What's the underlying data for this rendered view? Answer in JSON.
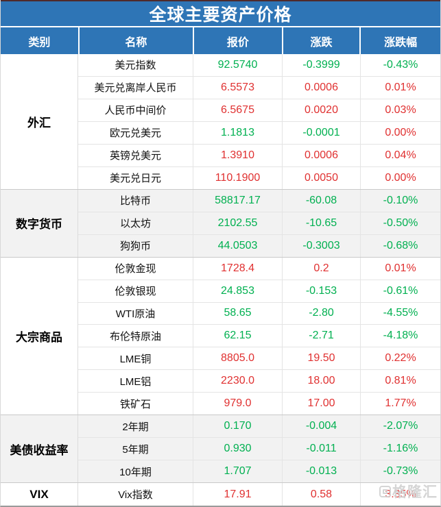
{
  "title": "全球主要资产价格",
  "watermark": {
    "text": "格隆汇"
  },
  "colors": {
    "up_red": "#e03030",
    "down_green": "#00b050",
    "header_blue": "#2e75b6",
    "shaded_bg": "#f2f2f2"
  },
  "chart_data": {
    "type": "table",
    "title": "全球主要资产价格",
    "columns": [
      "类别",
      "名称",
      "报价",
      "涨跌",
      "涨跌幅"
    ],
    "sections": [
      {
        "category": "外汇",
        "shaded": false,
        "rows": [
          {
            "name": "美元指数",
            "price": "92.5740",
            "change": "-0.3999",
            "pct": "-0.43%",
            "price_dir": "down",
            "change_dir": "down",
            "pct_dir": "down"
          },
          {
            "name": "美元兑离岸人民币",
            "price": "6.5573",
            "change": "0.0006",
            "pct": "0.01%",
            "price_dir": "up",
            "change_dir": "up",
            "pct_dir": "up"
          },
          {
            "name": "人民币中间价",
            "price": "6.5675",
            "change": "0.0020",
            "pct": "0.03%",
            "price_dir": "up",
            "change_dir": "up",
            "pct_dir": "up"
          },
          {
            "name": "欧元兑美元",
            "price": "1.1813",
            "change": "-0.0001",
            "pct": "0.00%",
            "price_dir": "down",
            "change_dir": "down",
            "pct_dir": "up"
          },
          {
            "name": "英镑兑美元",
            "price": "1.3910",
            "change": "0.0006",
            "pct": "0.04%",
            "price_dir": "up",
            "change_dir": "up",
            "pct_dir": "up"
          },
          {
            "name": "美元兑日元",
            "price": "110.1900",
            "change": "0.0050",
            "pct": "0.00%",
            "price_dir": "up",
            "change_dir": "up",
            "pct_dir": "up"
          }
        ]
      },
      {
        "category": "数字货币",
        "shaded": true,
        "rows": [
          {
            "name": "比特币",
            "price": "58817.17",
            "change": "-60.08",
            "pct": "-0.10%",
            "price_dir": "down",
            "change_dir": "down",
            "pct_dir": "down"
          },
          {
            "name": "以太坊",
            "price": "2102.55",
            "change": "-10.65",
            "pct": "-0.50%",
            "price_dir": "down",
            "change_dir": "down",
            "pct_dir": "down"
          },
          {
            "name": "狗狗币",
            "price": "44.0503",
            "change": "-0.3003",
            "pct": "-0.68%",
            "price_dir": "down",
            "change_dir": "down",
            "pct_dir": "down"
          }
        ]
      },
      {
        "category": "大宗商品",
        "shaded": false,
        "rows": [
          {
            "name": "伦敦金现",
            "price": "1728.4",
            "change": "0.2",
            "pct": "0.01%",
            "price_dir": "up",
            "change_dir": "up",
            "pct_dir": "up"
          },
          {
            "name": "伦敦银现",
            "price": "24.853",
            "change": "-0.153",
            "pct": "-0.61%",
            "price_dir": "down",
            "change_dir": "down",
            "pct_dir": "down"
          },
          {
            "name": "WTI原油",
            "price": "58.65",
            "change": "-2.80",
            "pct": "-4.55%",
            "price_dir": "down",
            "change_dir": "down",
            "pct_dir": "down"
          },
          {
            "name": "布伦特原油",
            "price": "62.15",
            "change": "-2.71",
            "pct": "-4.18%",
            "price_dir": "down",
            "change_dir": "down",
            "pct_dir": "down"
          },
          {
            "name": "LME铜",
            "price": "8805.0",
            "change": "19.50",
            "pct": "0.22%",
            "price_dir": "up",
            "change_dir": "up",
            "pct_dir": "up"
          },
          {
            "name": "LME铝",
            "price": "2230.0",
            "change": "18.00",
            "pct": "0.81%",
            "price_dir": "up",
            "change_dir": "up",
            "pct_dir": "up"
          },
          {
            "name": "铁矿石",
            "price": "979.0",
            "change": "17.00",
            "pct": "1.77%",
            "price_dir": "up",
            "change_dir": "up",
            "pct_dir": "up"
          }
        ]
      },
      {
        "category": "美债收益率",
        "shaded": true,
        "rows": [
          {
            "name": "2年期",
            "price": "0.170",
            "change": "-0.004",
            "pct": "-2.07%",
            "price_dir": "down",
            "change_dir": "down",
            "pct_dir": "down"
          },
          {
            "name": "5年期",
            "price": "0.930",
            "change": "-0.011",
            "pct": "-1.16%",
            "price_dir": "down",
            "change_dir": "down",
            "pct_dir": "down"
          },
          {
            "name": "10年期",
            "price": "1.707",
            "change": "-0.013",
            "pct": "-0.73%",
            "price_dir": "down",
            "change_dir": "down",
            "pct_dir": "down"
          }
        ]
      },
      {
        "category": "VIX",
        "shaded": false,
        "rows": [
          {
            "name": "Vix指数",
            "price": "17.91",
            "change": "0.58",
            "pct": "3.35%",
            "price_dir": "up",
            "change_dir": "up",
            "pct_dir": "up"
          }
        ]
      }
    ]
  }
}
